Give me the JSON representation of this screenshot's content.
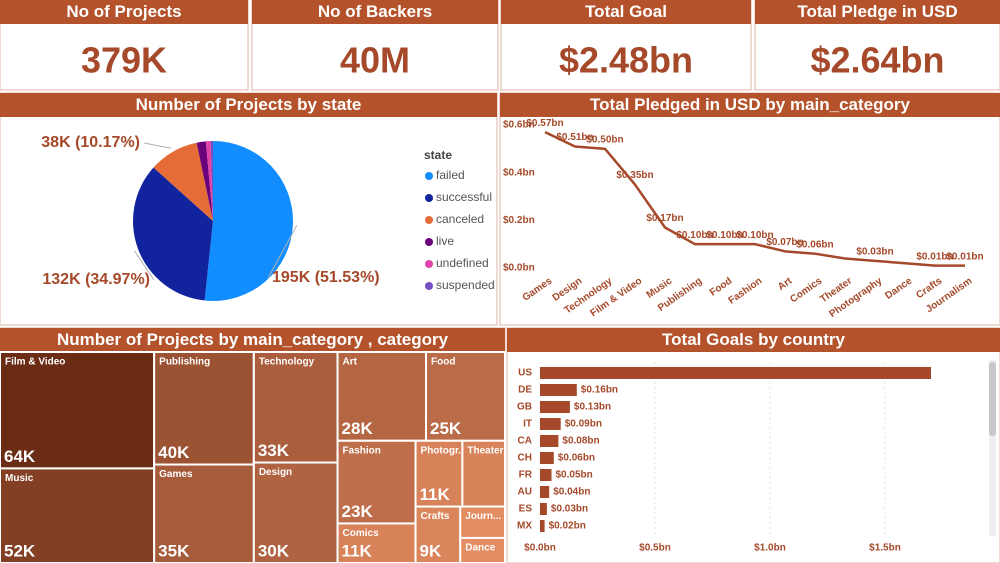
{
  "kpis": [
    {
      "title": "No of Projects",
      "value": "379K"
    },
    {
      "title": "No of Backers",
      "value": "40M"
    },
    {
      "title": "Total Goal",
      "value": "$2.48bn"
    },
    {
      "title": "Total Pledge in USD",
      "value": "$2.64bn"
    }
  ],
  "chart_data": [
    {
      "type": "pie",
      "title": "Number of Projects by state",
      "legend_title": "state",
      "legend": "right",
      "categories": [
        "failed",
        "successful",
        "canceled",
        "live",
        "undefined",
        "suspended"
      ],
      "values": [
        195,
        132,
        38,
        7,
        3.6,
        1.8
      ],
      "value_labels": [
        "195K (51.53%)",
        "132K (34.97%)",
        "38K (10.17%)",
        null,
        null,
        null
      ],
      "colors": [
        "#118dff",
        "#12239e",
        "#e66c37",
        "#6b007b",
        "#e044a7",
        "#744ec2"
      ]
    },
    {
      "type": "line",
      "title": "Total Pledged in USD by main_category",
      "categories": [
        "Games",
        "Design",
        "Technology",
        "Film & Video",
        "Music",
        "Publishing",
        "Food",
        "Fashion",
        "Art",
        "Comics",
        "Theater",
        "Photography",
        "Dance",
        "Crafts",
        "Journalism"
      ],
      "values": [
        0.57,
        0.51,
        0.5,
        0.35,
        0.17,
        0.1,
        0.1,
        0.1,
        0.07,
        0.06,
        0.04,
        0.03,
        0.02,
        0.01,
        0.01
      ],
      "value_labels": [
        "$0.57bn",
        "$0.51bn",
        "$0.50bn",
        "$0.35bn",
        "$0.17bn",
        "$0.10bn",
        "$0.10bn",
        "$0.10bn",
        "$0.07bn",
        "$0.06bn",
        null,
        "$0.03bn",
        null,
        "$0.01bn",
        "$0.01bn"
      ],
      "color": "#a5492a",
      "ylim": [
        0,
        0.6
      ],
      "yticks": [
        {
          "value": 0,
          "label": "$0.0bn"
        },
        {
          "value": 0.2,
          "label": "$0.2bn"
        },
        {
          "value": 0.4,
          "label": "$0.4bn"
        },
        {
          "value": 0.6,
          "label": "$0.6bn"
        }
      ]
    },
    {
      "type": "treemap",
      "title": "Number of Projects by main_category , category",
      "categories": [
        "Film & Video",
        "Music",
        "Publishing",
        "Games",
        "Technology",
        "Design",
        "Art",
        "Food",
        "Fashion",
        "Comics",
        "Photogr...",
        "Theater",
        "Crafts",
        "Journ...",
        "Dance"
      ],
      "values": [
        64,
        52,
        40,
        35,
        33,
        30,
        28,
        25,
        23,
        11,
        11,
        10,
        9,
        5,
        4
      ],
      "value_labels": [
        "64K",
        "52K",
        "40K",
        "35K",
        "33K",
        "30K",
        "28K",
        "25K",
        "23K",
        "11K",
        "11K",
        null,
        "9K",
        null,
        null
      ],
      "color_range": [
        "#6b2c15",
        "#e58d62"
      ]
    },
    {
      "type": "bar",
      "orientation": "horizontal",
      "title": "Total Goals by country",
      "categories": [
        "US",
        "DE",
        "GB",
        "IT",
        "CA",
        "CH",
        "FR",
        "AU",
        "ES",
        "MX"
      ],
      "values": [
        1.7,
        0.16,
        0.13,
        0.09,
        0.08,
        0.06,
        0.05,
        0.04,
        0.03,
        0.02
      ],
      "value_labels": [
        null,
        "$0.16bn",
        "$0.13bn",
        "$0.09bn",
        "$0.08bn",
        "$0.06bn",
        "$0.05bn",
        "$0.04bn",
        "$0.03bn",
        "$0.02bn"
      ],
      "color": "#a5492a",
      "xlim": [
        0,
        1.9
      ],
      "xticks": [
        {
          "value": 0,
          "label": "$0.0bn"
        },
        {
          "value": 0.5,
          "label": "$0.5bn"
        },
        {
          "value": 1,
          "label": "$1.0bn"
        },
        {
          "value": 1.5,
          "label": "$1.5bn"
        }
      ],
      "grid": true
    }
  ]
}
